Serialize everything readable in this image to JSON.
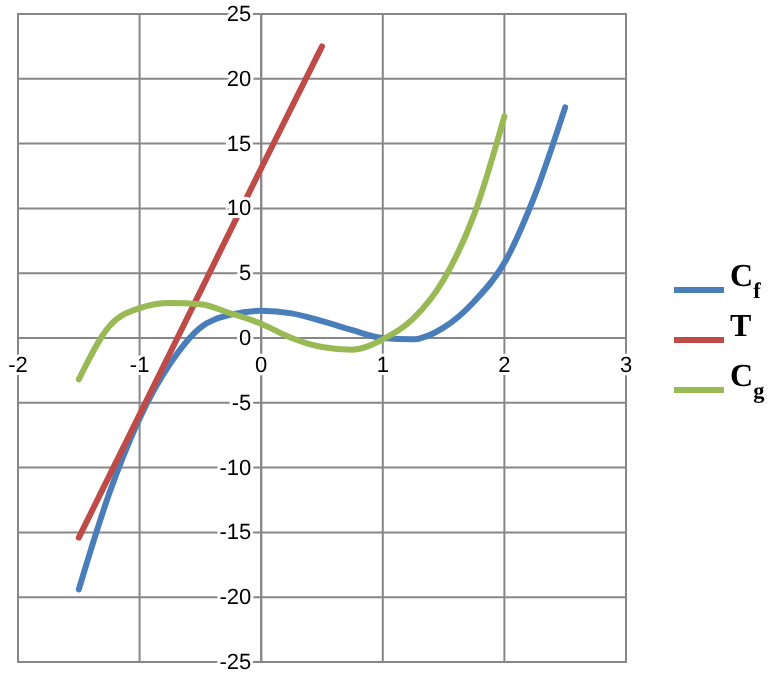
{
  "chart_data": {
    "type": "line",
    "xlim": [
      -2,
      3
    ],
    "ylim": [
      -25,
      25
    ],
    "xticks": [
      -2,
      -1,
      0,
      1,
      2,
      3
    ],
    "yticks": [
      -25,
      -20,
      -15,
      -10,
      -5,
      0,
      5,
      10,
      15,
      20,
      25
    ],
    "grid": true,
    "legend": "right",
    "series": [
      {
        "name": "C$_{f}$",
        "color": "#4a7ebb",
        "x": [
          -1.5,
          -1.25,
          -1,
          -0.75,
          -0.5,
          -0.25,
          0,
          0.25,
          0.5,
          0.75,
          1,
          1.25,
          1.5,
          1.75,
          2,
          2.25,
          2.5
        ],
        "values": [
          -19.4,
          -12,
          -6.2,
          -2,
          0.8,
          1.8,
          2.1,
          1.9,
          1.3,
          0.6,
          0,
          -0.1,
          0.8,
          2.8,
          5.8,
          11,
          17.8
        ]
      },
      {
        "name": "T",
        "color": "#be4b48",
        "x": [
          -1.5,
          -1,
          -0.5,
          0,
          0.5
        ],
        "values": [
          -15.4,
          -5.9,
          3.6,
          13.1,
          22.5
        ]
      },
      {
        "name": "C$_{g}$",
        "color": "#98b954",
        "x": [
          -1.5,
          -1.25,
          -1,
          -0.75,
          -0.5,
          -0.25,
          0,
          0.25,
          0.5,
          0.75,
          1,
          1.25,
          1.5,
          1.75,
          2
        ],
        "values": [
          -3.2,
          0.9,
          2.3,
          2.7,
          2.6,
          1.9,
          1.1,
          0,
          -0.7,
          -0.9,
          -0.1,
          1.5,
          4.5,
          9.5,
          17.1
        ]
      }
    ]
  }
}
